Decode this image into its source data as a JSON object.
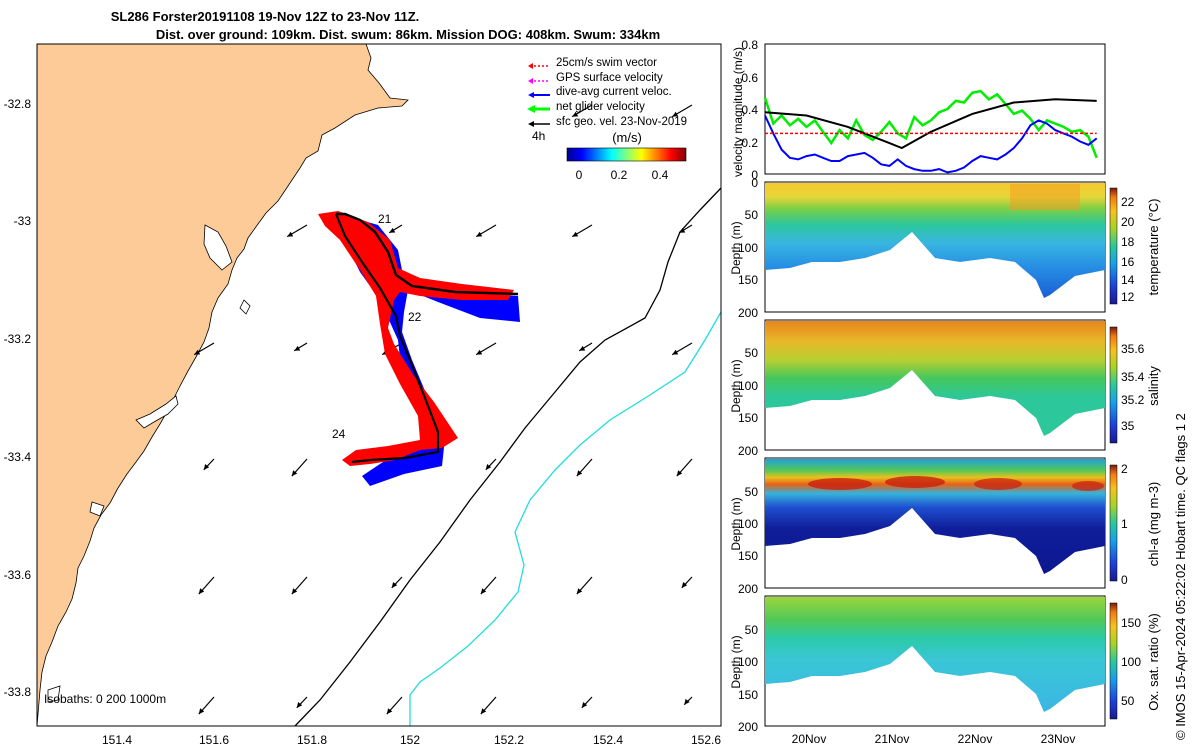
{
  "title": {
    "line1": "SL286 Forster20191108 19-Nov 12Z to 23-Nov 11Z.",
    "line2": "Dist. over ground: 109km. Dist. swum: 86km. Mission DOG: 408km. Swum: 334km"
  },
  "side_text": "© IMOS 15-Apr-2024 05:22:02 Hobart time. QC flags 1  2",
  "map": {
    "legend": [
      {
        "label": "25cm/s swim vector",
        "color": "#ff0000",
        "style": "dotted"
      },
      {
        "label": "GPS surface velocity",
        "color": "#ff00ff",
        "style": "dotted"
      },
      {
        "label": "dive-avg current veloc.",
        "color": "#0000ff",
        "style": "solid"
      },
      {
        "label": "net glider velocity",
        "color": "#00ff00",
        "style": "solid"
      },
      {
        "label": "sfc geo. vel. 23-Nov-2019",
        "color": "#000000",
        "style": "solid"
      }
    ],
    "scale_label": "4h",
    "colorbar": {
      "title": "(m/s)",
      "ticks": [
        "0",
        "0.2",
        "0.4"
      ],
      "min": -0.05,
      "max": 0.55
    },
    "bathy_label": "Isobaths: 0   200  1000m",
    "xticks": [
      "151.4",
      "151.6",
      "151.8",
      "152",
      "152.2",
      "152.4",
      "152.6"
    ],
    "yticks": [
      "-32.8",
      "-33",
      "-33.2",
      "-33.4",
      "-33.6",
      "-33.8"
    ],
    "xlim": [
      151.25,
      152.63
    ],
    "ylim": [
      -33.87,
      -32.71
    ],
    "day_labels": [
      {
        "text": "21",
        "lon": 151.98,
        "lat": -32.99
      },
      {
        "text": "22",
        "lon": 152.03,
        "lat": -33.19
      },
      {
        "text": "24",
        "lon": 151.83,
        "lat": -33.36
      }
    ],
    "colors": {
      "land": "#fdcb98",
      "track_red": "#ff0000",
      "track_blue": "#0000ff",
      "isobath_200": "#000000",
      "isobath_1000": "#22dddd"
    }
  },
  "chart_data": [
    {
      "type": "line",
      "ylabel": "velocity magnitude (m/s)",
      "ylim": [
        0,
        0.8
      ],
      "yticks": [
        "0",
        "0.2",
        "0.4",
        "0.6",
        "0.8"
      ],
      "series": [
        {
          "color": "#00ee00",
          "x": [
            19.5,
            19.6,
            19.7,
            19.8,
            19.9,
            20.0,
            20.1,
            20.2,
            20.3,
            20.4,
            20.5,
            20.6,
            20.7,
            20.8,
            20.9,
            21.0,
            21.1,
            21.2,
            21.3,
            21.4,
            21.5,
            21.6,
            21.7,
            21.8,
            21.9,
            22.0,
            22.1,
            22.2,
            22.3,
            22.4,
            22.5,
            22.6,
            22.7,
            22.8,
            22.9,
            23.0,
            23.1,
            23.2,
            23.3,
            23.4,
            23.5
          ],
          "values": [
            0.47,
            0.31,
            0.36,
            0.3,
            0.34,
            0.29,
            0.33,
            0.26,
            0.19,
            0.27,
            0.22,
            0.33,
            0.24,
            0.21,
            0.26,
            0.32,
            0.25,
            0.22,
            0.35,
            0.3,
            0.33,
            0.38,
            0.4,
            0.45,
            0.44,
            0.5,
            0.51,
            0.46,
            0.49,
            0.43,
            0.37,
            0.39,
            0.34,
            0.27,
            0.33,
            0.31,
            0.29,
            0.26,
            0.27,
            0.23,
            0.1
          ]
        },
        {
          "color": "#000000",
          "x": [
            19.5,
            20.0,
            20.5,
            21.0,
            21.15,
            21.5,
            22.0,
            22.5,
            23.0,
            23.5
          ],
          "values": [
            0.38,
            0.36,
            0.29,
            0.19,
            0.16,
            0.26,
            0.37,
            0.44,
            0.46,
            0.45
          ]
        },
        {
          "color": "#0000ff",
          "x": [
            19.5,
            19.6,
            19.7,
            19.8,
            19.9,
            20.0,
            20.1,
            20.2,
            20.3,
            20.4,
            20.5,
            20.6,
            20.7,
            20.8,
            20.9,
            21.0,
            21.1,
            21.2,
            21.3,
            21.4,
            21.5,
            21.6,
            21.7,
            21.8,
            21.9,
            22.0,
            22.1,
            22.2,
            22.3,
            22.4,
            22.5,
            22.6,
            22.7,
            22.8,
            22.9,
            23.0,
            23.1,
            23.2,
            23.3,
            23.4,
            23.5
          ],
          "values": [
            0.36,
            0.25,
            0.15,
            0.1,
            0.09,
            0.11,
            0.12,
            0.1,
            0.08,
            0.08,
            0.11,
            0.12,
            0.13,
            0.1,
            0.06,
            0.05,
            0.09,
            0.05,
            0.03,
            0.02,
            0.02,
            0.03,
            0.01,
            0.02,
            0.04,
            0.08,
            0.11,
            0.1,
            0.09,
            0.12,
            0.16,
            0.22,
            0.3,
            0.33,
            0.31,
            0.27,
            0.25,
            0.23,
            0.2,
            0.18,
            0.22
          ]
        },
        {
          "color": "#ff0000",
          "style": "dashed",
          "x": [
            19.5,
            23.5
          ],
          "values": [
            0.25,
            0.25
          ]
        }
      ]
    },
    {
      "type": "heatmap",
      "variable": "temperature",
      "colorbar_label": "temperature (°C)",
      "colorbar_ticks": [
        "12",
        "14",
        "16",
        "18",
        "20",
        "22"
      ],
      "clim": [
        11,
        23.5
      ],
      "ylabel": "Depth (m)",
      "ylim": [
        200,
        0
      ],
      "yticks": [
        "0",
        "50",
        "100",
        "150",
        "200"
      ],
      "xticks": [
        "20Nov",
        "21Nov",
        "22Nov",
        "23Nov"
      ],
      "xlim": [
        19.5,
        23.6
      ]
    },
    {
      "type": "heatmap",
      "variable": "salinity",
      "colorbar_label": "salinity",
      "colorbar_ticks": [
        "35",
        "35.2",
        "35.4",
        "35.6"
      ],
      "clim": [
        34.88,
        35.76
      ],
      "ylabel": "Depth (m)",
      "ylim": [
        200,
        0
      ],
      "yticks": [
        "0",
        "50",
        "100",
        "150",
        "200"
      ]
    },
    {
      "type": "heatmap",
      "variable": "chl-a",
      "colorbar_label": "chl-a (mg m-3)",
      "colorbar_ticks": [
        "0",
        "1",
        "2"
      ],
      "clim": [
        0,
        2
      ],
      "ylabel": "Depth (m)",
      "ylim": [
        200,
        0
      ],
      "yticks": [
        "0",
        "50",
        "100",
        "150",
        "200"
      ]
    },
    {
      "type": "heatmap",
      "variable": "oxygen saturation",
      "colorbar_label": "Ox. sat. ratio (%)",
      "colorbar_ticks": [
        "50",
        "100",
        "150"
      ],
      "clim": [
        25,
        175
      ],
      "ylabel": "Depth (m)",
      "ylim": [
        200,
        0
      ],
      "yticks": [
        "0",
        "50",
        "100",
        "150",
        "200"
      ]
    }
  ]
}
